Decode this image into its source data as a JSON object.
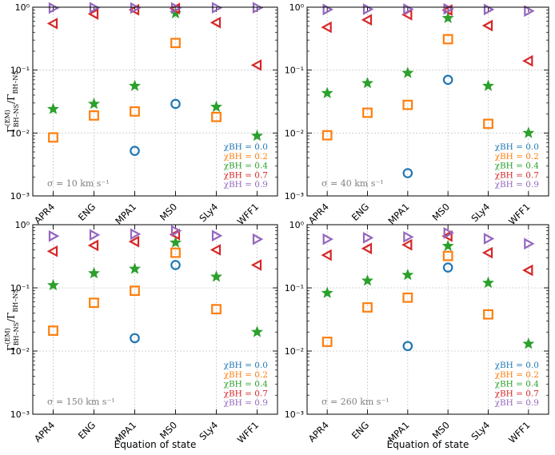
{
  "figure": {
    "xlabel": "Equation of state",
    "ylabel_main": "Γ",
    "ylabel_sup": "(EM)",
    "ylabel_sub": "BH–NS",
    "ylabel_tail": "/Γ",
    "ylabel_sub2": "BH–NS"
  },
  "legend": {
    "items": [
      {
        "label": "χBH = 0.0",
        "color": "#1f77b4",
        "marker": "circle-icon"
      },
      {
        "label": "χBH = 0.2",
        "color": "#ff7f0e",
        "marker": "square-icon"
      },
      {
        "label": "χBH = 0.4",
        "color": "#2ca02c",
        "marker": "star-icon"
      },
      {
        "label": "χBH = 0.7",
        "color": "#d62728",
        "marker": "triangle-left-icon"
      },
      {
        "label": "χBH = 0.9",
        "color": "#9467bd",
        "marker": "triangle-right-icon"
      }
    ]
  },
  "chart_data": [
    {
      "type": "scatter",
      "panel": "top-left",
      "annotation": "σ = 10 km s⁻¹",
      "categories": [
        "APR4",
        "ENG",
        "MPA1",
        "MS0",
        "SLy4",
        "WFF1"
      ],
      "yscale": "log",
      "ylim": [
        0.001,
        1
      ],
      "yticks": [
        "10⁻³",
        "10⁻²",
        "10⁻¹",
        "10⁰"
      ],
      "grid": true,
      "series": [
        {
          "name": "χBH = 0.0",
          "values": [
            null,
            null,
            0.0052,
            0.029,
            null,
            null
          ]
        },
        {
          "name": "χBH = 0.2",
          "values": [
            0.0085,
            0.019,
            0.022,
            0.27,
            0.018,
            null
          ]
        },
        {
          "name": "χBH = 0.4",
          "values": [
            0.024,
            0.029,
            0.056,
            0.8,
            0.026,
            0.009
          ]
        },
        {
          "name": "χBH = 0.7",
          "values": [
            0.55,
            0.78,
            0.91,
            0.95,
            0.57,
            0.12
          ]
        },
        {
          "name": "χBH = 0.9",
          "values": [
            0.97,
            0.98,
            0.97,
            0.97,
            0.98,
            0.98
          ]
        }
      ]
    },
    {
      "type": "scatter",
      "panel": "top-right",
      "annotation": "σ = 40 km s⁻¹",
      "categories": [
        "APR4",
        "ENG",
        "MPA1",
        "MS0",
        "SLy4",
        "WFF1"
      ],
      "yscale": "log",
      "ylim": [
        0.001,
        1
      ],
      "yticks": [
        "10⁻³",
        "10⁻²",
        "10⁻¹",
        "10⁰"
      ],
      "grid": true,
      "series": [
        {
          "name": "χBH = 0.0",
          "values": [
            null,
            null,
            0.0023,
            0.07,
            null,
            null
          ]
        },
        {
          "name": "χBH = 0.2",
          "values": [
            0.0092,
            0.021,
            0.028,
            0.31,
            0.014,
            null
          ]
        },
        {
          "name": "χBH = 0.4",
          "values": [
            0.043,
            0.062,
            0.09,
            0.67,
            0.056,
            0.01
          ]
        },
        {
          "name": "χBH = 0.7",
          "values": [
            0.48,
            0.63,
            0.76,
            0.9,
            0.51,
            0.14
          ]
        },
        {
          "name": "χBH = 0.9",
          "values": [
            0.92,
            0.93,
            0.93,
            0.94,
            0.92,
            0.87
          ]
        }
      ]
    },
    {
      "type": "scatter",
      "panel": "bottom-left",
      "annotation": "σ = 150 km s⁻¹",
      "categories": [
        "APR4",
        "ENG",
        "MPA1",
        "MS0",
        "SLy4",
        "WFF1"
      ],
      "yscale": "log",
      "ylim": [
        0.001,
        1
      ],
      "yticks": [
        "10⁻³",
        "10⁻²",
        "10⁻¹",
        "10⁰"
      ],
      "grid": true,
      "series": [
        {
          "name": "χBH = 0.0",
          "values": [
            null,
            null,
            0.016,
            0.23,
            null,
            null
          ]
        },
        {
          "name": "χBH = 0.2",
          "values": [
            0.021,
            0.058,
            0.09,
            0.36,
            0.046,
            null
          ]
        },
        {
          "name": "χBH = 0.4",
          "values": [
            0.11,
            0.17,
            0.2,
            0.52,
            0.15,
            0.02
          ]
        },
        {
          "name": "χBH = 0.7",
          "values": [
            0.38,
            0.47,
            0.54,
            0.7,
            0.4,
            0.23
          ]
        },
        {
          "name": "χBH = 0.9",
          "values": [
            0.66,
            0.69,
            0.71,
            0.8,
            0.67,
            0.59
          ]
        }
      ]
    },
    {
      "type": "scatter",
      "panel": "bottom-right",
      "annotation": "σ = 260 km s⁻¹",
      "categories": [
        "APR4",
        "ENG",
        "MPA1",
        "MS0",
        "SLy4",
        "WFF1"
      ],
      "yscale": "log",
      "ylim": [
        0.001,
        1
      ],
      "yticks": [
        "10⁻³",
        "10⁻²",
        "10⁻¹",
        "10⁰"
      ],
      "grid": true,
      "series": [
        {
          "name": "χBH = 0.0",
          "values": [
            null,
            null,
            0.012,
            0.21,
            null,
            null
          ]
        },
        {
          "name": "χBH = 0.2",
          "values": [
            0.014,
            0.049,
            0.07,
            0.32,
            0.038,
            null
          ]
        },
        {
          "name": "χBH = 0.4",
          "values": [
            0.083,
            0.13,
            0.16,
            0.46,
            0.12,
            0.013
          ]
        },
        {
          "name": "χBH = 0.7",
          "values": [
            0.33,
            0.42,
            0.48,
            0.66,
            0.36,
            0.19
          ]
        },
        {
          "name": "χBH = 0.9",
          "values": [
            0.59,
            0.62,
            0.64,
            0.74,
            0.6,
            0.5
          ]
        }
      ]
    }
  ]
}
